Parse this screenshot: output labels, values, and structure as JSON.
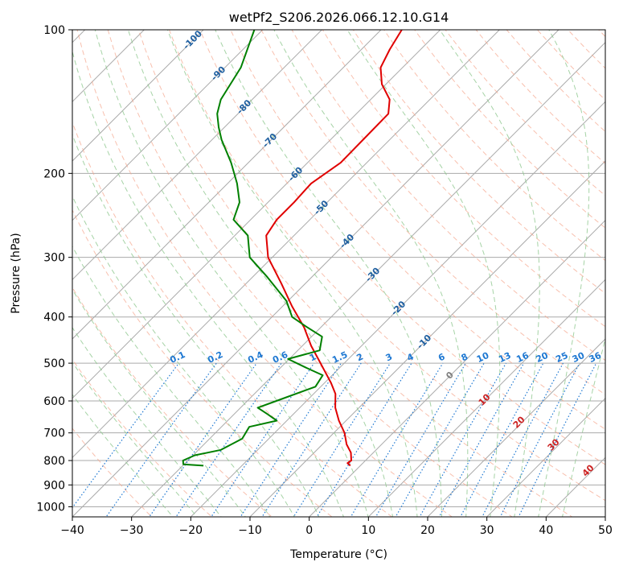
{
  "chart_data": {
    "type": "line",
    "title": "wetPf2_S206.2026.066.12.10.G14",
    "xlabel": "Temperature (°C)",
    "ylabel": "Pressure (hPa)",
    "xlim": [
      -40,
      50
    ],
    "ylim": [
      1050,
      100
    ],
    "y_scale": "log",
    "skew_deg": 45,
    "grid": true,
    "x_ticks": [
      -40,
      -30,
      -20,
      -10,
      0,
      10,
      20,
      30,
      40,
      50
    ],
    "x_tick_labels": [
      "−40",
      "−30",
      "−20",
      "−10",
      "0",
      "10",
      "20",
      "30",
      "40",
      "50"
    ],
    "y_ticks": [
      100,
      200,
      300,
      400,
      500,
      600,
      700,
      800,
      900,
      1000
    ],
    "y_tick_labels": [
      "100",
      "200",
      "300",
      "400",
      "500",
      "600",
      "700",
      "800",
      "900",
      "1000"
    ],
    "colors": {
      "temperature": "#e00000",
      "dewpoint": "#008000",
      "isotherm": "#aaaaaa",
      "isobar": "#aaaaaa",
      "dry_adiabat": "#f5a58c",
      "moist_adiabat": "#90c890",
      "mixing_ratio": "#1e78d2",
      "isotherm_label": "#1f5fa0",
      "dry_adiabat_label": "#cc2222"
    },
    "series": [
      {
        "key": "temperature",
        "p": [
          820,
          810,
          800,
          770,
          740,
          700,
          660,
          620,
          580,
          550,
          520,
          490,
          460,
          420,
          380,
          340,
          300,
          270,
          250,
          230,
          210,
          190,
          170,
          150,
          140,
          130,
          120,
          110,
          100
        ],
        "t": [
          -1.7,
          -2.6,
          -2.4,
          -3.8,
          -5.9,
          -8.2,
          -11.2,
          -14.0,
          -16.3,
          -18.9,
          -21.9,
          -25.1,
          -28.5,
          -32.9,
          -38.4,
          -44.1,
          -50.7,
          -54.7,
          -55.6,
          -55.6,
          -55.9,
          -54.4,
          -54.5,
          -54.6,
          -56.8,
          -60.7,
          -63.7,
          -65.2,
          -66.5
        ]
      },
      {
        "key": "dewpoint",
        "p": [
          820,
          815,
          800,
          780,
          760,
          720,
          680,
          660,
          640,
          620,
          600,
          560,
          530,
          510,
          490,
          470,
          440,
          420,
          400,
          370,
          330,
          300,
          270,
          250,
          230,
          210,
          190,
          170,
          160,
          150,
          140,
          120,
          100
        ],
        "t": [
          -26.5,
          -30.1,
          -30.8,
          -29.7,
          -26.2,
          -24.5,
          -25.3,
          -21.7,
          -24.3,
          -27.1,
          -25.1,
          -20.9,
          -21.6,
          -25.9,
          -30.2,
          -26.3,
          -28.2,
          -32.4,
          -36.6,
          -40.3,
          -47.5,
          -53.8,
          -57.8,
          -62.9,
          -64.8,
          -68.4,
          -72.9,
          -78.4,
          -81.0,
          -83.5,
          -85.3,
          -87.3,
          -91.4
        ]
      }
    ],
    "isotherm_labels": [
      "-100",
      "-90",
      "-80",
      "-70",
      "-60",
      "-50",
      "-40",
      "-30",
      "-20",
      "-10",
      "0"
    ],
    "dry_adiabat_labels": [
      "10",
      "20",
      "30",
      "40"
    ],
    "mixing_ratio_labels": [
      "0.1",
      "0.2",
      "0.4",
      "0.6",
      "1",
      "1.5",
      "2",
      "3",
      "4",
      "6",
      "8",
      "10",
      "13",
      "16",
      "20",
      "25",
      "30",
      "36"
    ]
  }
}
